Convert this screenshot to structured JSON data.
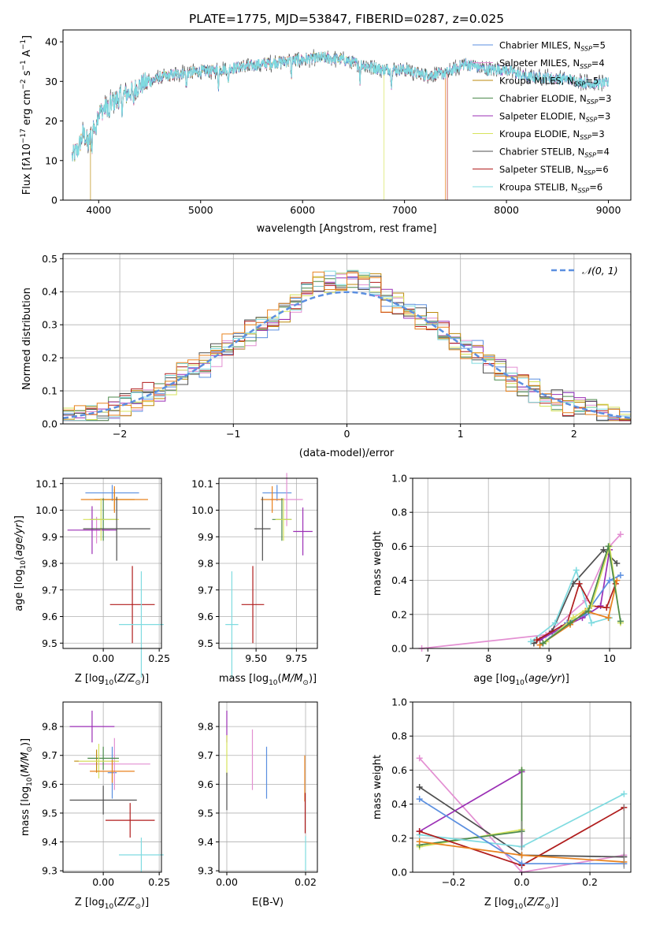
{
  "figure": {
    "title": "PLATE=1775, MJD=53847, FIBERID=0287, z=0.025"
  },
  "colors": {
    "Chabrier MILES": "#5b8fe0",
    "Salpeter MILES": "#e38fd2",
    "Kroupa MILES": "#bd8a0c",
    "Chabrier ELODIE": "#4c8a4c",
    "Salpeter ELODIE": "#9b2fb5",
    "Kroupa ELODIE": "#d7e35c",
    "Chabrier STELIB": "#4f4f4f",
    "Salpeter STELIB": "#b01c1c",
    "Kroupa STELIB": "#7fdbe0",
    "extra_orange": "#e8821e",
    "extra_pink": "#e07ab8",
    "extra_lime": "#b9e05a",
    "normal_curve": "#5b8fe0"
  },
  "chart_data": [
    {
      "id": "spectrum",
      "type": "line",
      "xlabel": "wavelength [Angstrom, rest frame]",
      "ylabel": "Flux [f_λ10^-17 erg cm^-2 s^-1 A^-1]",
      "xlim": [
        3650,
        9220
      ],
      "ylim": [
        0,
        43
      ],
      "xticks": [
        4000,
        5000,
        6000,
        7000,
        8000,
        9000
      ],
      "yticks": [
        0,
        10,
        20,
        30,
        40
      ],
      "grid": false,
      "legend_position": "top-right",
      "legend": [
        {
          "name": "Chabrier MILES",
          "nssp": "5"
        },
        {
          "name": "Salpeter MILES",
          "nssp": "4"
        },
        {
          "name": "Kroupa MILES",
          "nssp": "5"
        },
        {
          "name": "Chabrier ELODIE",
          "nssp": "3"
        },
        {
          "name": "Salpeter ELODIE",
          "nssp": "3"
        },
        {
          "name": "Kroupa ELODIE",
          "nssp": "3"
        },
        {
          "name": "Chabrier STELIB",
          "nssp": "4"
        },
        {
          "name": "Salpeter STELIB",
          "nssp": "6"
        },
        {
          "name": "Kroupa STELIB",
          "nssp": "6"
        }
      ],
      "continuum": {
        "x": [
          3740,
          3800,
          3850,
          3900,
          3950,
          4000,
          4100,
          4200,
          4300,
          4400,
          4500,
          4600,
          4800,
          5000,
          5200,
          5500,
          5800,
          6000,
          6200,
          6400,
          6600,
          6800,
          7000,
          7200,
          7400,
          7600,
          7800,
          8000,
          8200,
          8400,
          8600,
          8800,
          9000
        ],
        "y": [
          11,
          13,
          17,
          14,
          19,
          22,
          24,
          26,
          27,
          29,
          30,
          31,
          32,
          32.5,
          33,
          34,
          35,
          35.5,
          36,
          35.5,
          34,
          33,
          33,
          31.5,
          32,
          34.5,
          33,
          33,
          31,
          31,
          30.5,
          29.5,
          29.5
        ]
      },
      "cutoffs": [
        {
          "series": "Kroupa MILES",
          "x": 3920
        },
        {
          "series": "Kroupa ELODIE",
          "x": 6800
        },
        {
          "series": "Salpeter STELIB",
          "x": 7420
        },
        {
          "series": "extra_orange",
          "x": 7400
        }
      ]
    },
    {
      "id": "residual_histogram",
      "type": "step",
      "xlabel": "(data-model)/error",
      "ylabel": "Normed distribution",
      "xlim": [
        -2.5,
        2.5
      ],
      "ylim": [
        0,
        0.515
      ],
      "xticks": [
        -2,
        -1,
        0,
        1,
        2
      ],
      "yticks": [
        0.0,
        0.1,
        0.2,
        0.3,
        0.4,
        0.5
      ],
      "grid": true,
      "legend_position": "top-right",
      "legend_label": "𝒩(0, 1)",
      "bin_width": 0.1
    },
    {
      "id": "age_vs_Z",
      "type": "errorbar",
      "xlabel": "Z [log10(Z/Z_sun)]",
      "ylabel": "age [log10(age/yr)]",
      "xlim": [
        -0.18,
        0.26
      ],
      "ylim": [
        9.48,
        10.12
      ],
      "xticks": [
        0.0,
        0.25
      ],
      "yticks": [
        9.5,
        9.6,
        9.7,
        9.8,
        9.9,
        10.0,
        10.1
      ],
      "grid": true,
      "points": [
        {
          "series": "Chabrier MILES",
          "x": 0.04,
          "y": 10.065,
          "xerr": 0.12,
          "yerr": 0.03
        },
        {
          "series": "Salpeter MILES",
          "x": -0.03,
          "y": 9.925,
          "xerr": 0.06,
          "yerr": 0.05
        },
        {
          "series": "Kroupa MILES",
          "x": 0.05,
          "y": 10.04,
          "xerr": 0.09,
          "yerr": 0.04
        },
        {
          "series": "extra_orange",
          "x": 0.05,
          "y": 10.04,
          "xerr": 0.15,
          "yerr": 0.05
        },
        {
          "series": "Chabrier ELODIE",
          "x": 0.0,
          "y": 9.965,
          "xerr": 0.06,
          "yerr": 0.08
        },
        {
          "series": "Salpeter ELODIE",
          "x": -0.05,
          "y": 9.925,
          "xerr": 0.11,
          "yerr": 0.09
        },
        {
          "series": "Kroupa ELODIE",
          "x": -0.01,
          "y": 9.965,
          "xerr": 0.08,
          "yerr": 0.08
        },
        {
          "series": "Chabrier STELIB",
          "x": 0.06,
          "y": 9.93,
          "xerr": 0.15,
          "yerr": 0.12
        },
        {
          "series": "Salpeter STELIB",
          "x": 0.13,
          "y": 9.645,
          "xerr": 0.1,
          "yerr": 0.145
        },
        {
          "series": "Kroupa STELIB",
          "x": 0.17,
          "y": 9.57,
          "xerr": 0.1,
          "yerr": 0.2
        }
      ]
    },
    {
      "id": "age_vs_mass",
      "type": "errorbar",
      "xlabel": "mass [log10(M/M_sun)]",
      "ylabel": "",
      "xlim": [
        9.27,
        9.88
      ],
      "ylim": [
        9.48,
        10.12
      ],
      "xticks": [
        9.5,
        9.75
      ],
      "yticks": [
        9.5,
        9.6,
        9.7,
        9.8,
        9.9,
        10.0,
        10.1
      ],
      "grid": true,
      "points": [
        {
          "series": "Chabrier MILES",
          "x": 9.63,
          "y": 10.065,
          "xerr": 0.09,
          "yerr": 0.03
        },
        {
          "series": "Salpeter MILES",
          "x": 9.69,
          "y": 10.04,
          "xerr": 0.1,
          "yerr": 0.1
        },
        {
          "series": "extra_orange",
          "x": 9.6,
          "y": 10.04,
          "xerr": 0.07,
          "yerr": 0.05
        },
        {
          "series": "Chabrier ELODIE",
          "x": 9.66,
          "y": 9.965,
          "xerr": 0.06,
          "yerr": 0.08
        },
        {
          "series": "Salpeter ELODIE",
          "x": 9.79,
          "y": 9.92,
          "xerr": 0.06,
          "yerr": 0.09
        },
        {
          "series": "Kroupa ELODIE",
          "x": 9.67,
          "y": 9.965,
          "xerr": 0.05,
          "yerr": 0.08
        },
        {
          "series": "Chabrier STELIB",
          "x": 9.54,
          "y": 9.93,
          "xerr": 0.05,
          "yerr": 0.12
        },
        {
          "series": "Salpeter STELIB",
          "x": 9.48,
          "y": 9.645,
          "xerr": 0.07,
          "yerr": 0.145
        },
        {
          "series": "Kroupa STELIB",
          "x": 9.35,
          "y": 9.57,
          "xerr": 0.04,
          "yerr": 0.2
        }
      ]
    },
    {
      "id": "weight_vs_age",
      "type": "line",
      "xlabel": "age [log10(age/yr)]",
      "ylabel": "mass weight",
      "xlim": [
        6.75,
        10.35
      ],
      "ylim": [
        0,
        1
      ],
      "xticks": [
        7,
        8,
        9,
        10
      ],
      "yticks": [
        0.0,
        0.2,
        0.4,
        0.6,
        0.8,
        1.0
      ],
      "grid": true,
      "lines": [
        {
          "series": "Salpeter MILES",
          "x": [
            6.9,
            8.95,
            9.6,
            10.0,
            10.18
          ],
          "y": [
            0.0,
            0.08,
            0.28,
            0.6,
            0.67
          ]
        },
        {
          "series": "Chabrier STELIB",
          "x": [
            8.75,
            9.05,
            9.4,
            9.9,
            10.12
          ],
          "y": [
            0.03,
            0.1,
            0.38,
            0.58,
            0.5
          ]
        },
        {
          "series": "Salpeter ELODIE",
          "x": [
            8.85,
            9.2,
            9.55,
            9.85,
            10.0
          ],
          "y": [
            0.05,
            0.12,
            0.18,
            0.25,
            0.58
          ]
        },
        {
          "series": "Kroupa STELIB",
          "x": [
            8.7,
            9.1,
            9.45,
            9.7,
            10.0
          ],
          "y": [
            0.04,
            0.15,
            0.46,
            0.15,
            0.18
          ]
        },
        {
          "series": "Salpeter STELIB",
          "x": [
            8.8,
            9.3,
            9.5,
            9.7,
            9.95,
            10.1
          ],
          "y": [
            0.05,
            0.15,
            0.38,
            0.25,
            0.24,
            0.38
          ]
        },
        {
          "series": "extra_orange",
          "x": [
            8.85,
            9.35,
            9.6,
            9.98,
            10.12
          ],
          "y": [
            0.02,
            0.14,
            0.22,
            0.18,
            0.4
          ]
        },
        {
          "series": "Chabrier MILES",
          "x": [
            8.9,
            9.3,
            9.6,
            10.0,
            10.18
          ],
          "y": [
            0.03,
            0.15,
            0.2,
            0.4,
            0.43
          ]
        },
        {
          "series": "Kroupa ELODIE",
          "x": [
            8.95,
            9.4,
            9.7,
            10.0,
            10.18
          ],
          "y": [
            0.04,
            0.18,
            0.25,
            0.6,
            0.15
          ]
        },
        {
          "series": "Chabrier ELODIE",
          "x": [
            8.9,
            9.35,
            9.65,
            9.98,
            10.18
          ],
          "y": [
            0.03,
            0.15,
            0.22,
            0.6,
            0.16
          ]
        }
      ]
    },
    {
      "id": "mass_vs_Z",
      "type": "errorbar",
      "xlabel": "Z [log10(Z/Z_sun)]",
      "ylabel": "mass [log10(M/M_sun)]",
      "xlim": [
        -0.18,
        0.26
      ],
      "ylim": [
        9.295,
        9.885
      ],
      "xticks": [
        0.0,
        0.25
      ],
      "yticks": [
        9.3,
        9.4,
        9.5,
        9.6,
        9.7,
        9.8
      ],
      "grid": true,
      "points": [
        {
          "series": "Salpeter ELODIE",
          "x": -0.05,
          "y": 9.8,
          "xerr": 0.1,
          "yerr": 0.055
        },
        {
          "series": "Chabrier MILES",
          "x": 0.04,
          "y": 9.64,
          "xerr": 0.02,
          "yerr": 0.09
        },
        {
          "series": "Salpeter MILES",
          "x": 0.05,
          "y": 9.67,
          "xerr": 0.16,
          "yerr": 0.09
        },
        {
          "series": "Kroupa MILES",
          "x": -0.03,
          "y": 9.68,
          "xerr": 0.1,
          "yerr": 0.04
        },
        {
          "series": "Chabrier ELODIE",
          "x": 0.0,
          "y": 9.69,
          "xerr": 0.07,
          "yerr": 0.04
        },
        {
          "series": "Kroupa ELODIE",
          "x": -0.02,
          "y": 9.68,
          "xerr": 0.09,
          "yerr": 0.06
        },
        {
          "series": "extra_orange",
          "x": 0.04,
          "y": 9.645,
          "xerr": 0.1,
          "yerr": 0.04
        },
        {
          "series": "Chabrier STELIB",
          "x": 0.0,
          "y": 9.545,
          "xerr": 0.15,
          "yerr": 0.05
        },
        {
          "series": "Salpeter STELIB",
          "x": 0.12,
          "y": 9.475,
          "xerr": 0.11,
          "yerr": 0.06
        },
        {
          "series": "Kroupa STELIB",
          "x": 0.17,
          "y": 9.355,
          "xerr": 0.1,
          "yerr": 0.06
        }
      ]
    },
    {
      "id": "mass_vs_EBV",
      "type": "errorbar",
      "xlabel": "E(B-V)",
      "ylabel": "",
      "xlim": [
        -0.002,
        0.023
      ],
      "ylim": [
        9.295,
        9.885
      ],
      "xticks": [
        0.0,
        0.02
      ],
      "yticks": [
        9.3,
        9.4,
        9.5,
        9.6,
        9.7,
        9.8
      ],
      "grid": true,
      "points": [
        {
          "series": "Salpeter ELODIE",
          "x": 0.0,
          "y": 9.8,
          "yerr": 0.055
        },
        {
          "series": "Kroupa ELODIE",
          "x": 0.0,
          "y": 9.7,
          "yerr": 0.07
        },
        {
          "series": "Chabrier STELIB",
          "x": 0.0,
          "y": 9.575,
          "yerr": 0.065
        },
        {
          "series": "Salpeter MILES",
          "x": 0.0065,
          "y": 9.685,
          "yerr": 0.105
        },
        {
          "series": "Chabrier MILES",
          "x": 0.0101,
          "y": 9.64,
          "yerr": 0.09
        },
        {
          "series": "extra_orange",
          "x": 0.0198,
          "y": 9.62,
          "yerr": 0.08
        },
        {
          "series": "Salpeter STELIB",
          "x": 0.0199,
          "y": 9.5,
          "yerr": 0.07
        },
        {
          "series": "Kroupa STELIB",
          "x": 0.02,
          "y": 9.36,
          "yerr": 0.06
        }
      ]
    },
    {
      "id": "weight_vs_Z",
      "type": "line",
      "xlabel": "Z [log10(Z/Z_sun)]",
      "ylabel": "mass weight",
      "xlim": [
        -0.32,
        0.32
      ],
      "ylim": [
        0,
        1
      ],
      "xticks": [
        -0.2,
        0.0,
        0.2
      ],
      "yticks": [
        0.0,
        0.2,
        0.4,
        0.6,
        0.8,
        1.0
      ],
      "grid": true,
      "lines": [
        {
          "series": "Salpeter MILES",
          "x": [
            -0.3,
            0.0,
            0.3
          ],
          "y": [
            0.67,
            0.0,
            0.1
          ]
        },
        {
          "series": "Chabrier STELIB",
          "x": [
            -0.3,
            0.0,
            0.3
          ],
          "y": [
            0.5,
            0.1,
            0.09
          ]
        },
        {
          "series": "Salpeter ELODIE",
          "x": [
            -0.3,
            0.0,
            0.0
          ],
          "y": [
            0.24,
            0.59,
            0.15
          ]
        },
        {
          "series": "Kroupa ELODIE",
          "x": [
            -0.3,
            0.0,
            0.0
          ],
          "y": [
            0.15,
            0.25,
            0.6
          ]
        },
        {
          "series": "Chabrier ELODIE",
          "x": [
            -0.3,
            0.0,
            0.0
          ],
          "y": [
            0.16,
            0.24,
            0.6
          ]
        },
        {
          "series": "Kroupa STELIB",
          "x": [
            -0.3,
            0.0,
            0.3
          ],
          "y": [
            0.22,
            0.15,
            0.46
          ]
        },
        {
          "series": "Salpeter STELIB",
          "x": [
            -0.3,
            0.0,
            0.3
          ],
          "y": [
            0.24,
            0.04,
            0.38
          ]
        },
        {
          "series": "Chabrier MILES",
          "x": [
            -0.3,
            0.0,
            0.3
          ],
          "y": [
            0.43,
            0.05,
            0.05
          ]
        },
        {
          "series": "extra_orange",
          "x": [
            -0.3,
            0.0,
            0.3
          ],
          "y": [
            0.18,
            0.1,
            0.06
          ]
        }
      ],
      "vertical_bars": [
        {
          "x": 0.3,
          "y0": 0.02,
          "y1": 0.4
        },
        {
          "x": 0.0,
          "y0": 0.13,
          "y1": 0.3
        }
      ]
    }
  ]
}
